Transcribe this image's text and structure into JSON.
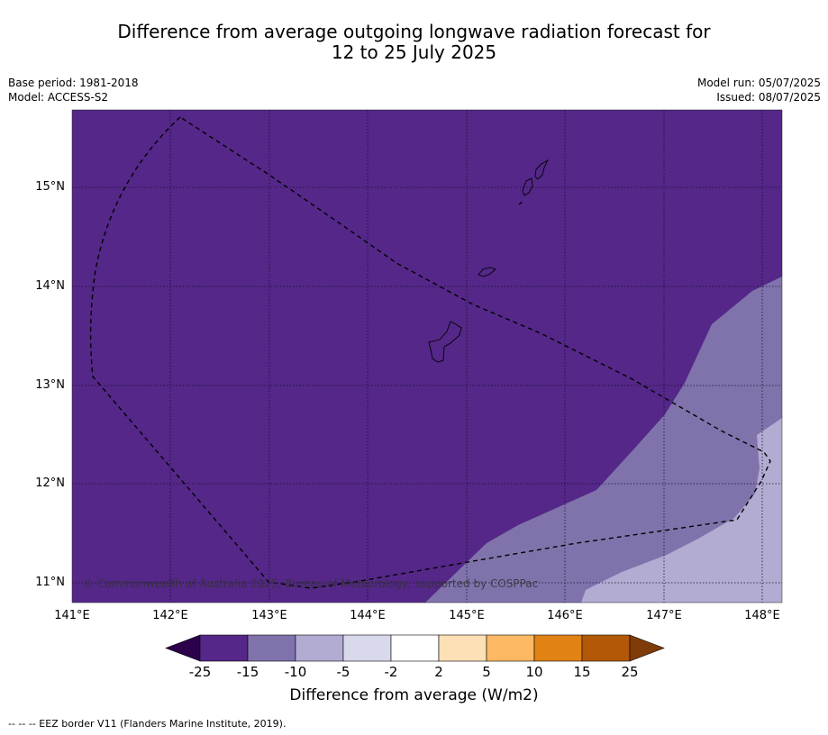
{
  "title_line1": "Difference from average outgoing longwave radiation forecast for",
  "title_line2": "12 to 25 July 2025",
  "meta": {
    "base_period": "Base period: 1981-2018",
    "model": "Model: ACCESS-S2",
    "model_run": "Model run: 05/07/2025",
    "issued": "Issued: 08/07/2025"
  },
  "lat_labels": [
    "15°N",
    "14°N",
    "13°N",
    "12°N",
    "11°N"
  ],
  "lon_labels": [
    "141°E",
    "142°E",
    "143°E",
    "144°E",
    "145°E",
    "146°E",
    "147°E",
    "148°E"
  ],
  "copyright": "© Commonwealth of Australia 2025, Bureau of Meteorology, supported by COSPPac",
  "colorbar": {
    "ticks": [
      "-25",
      "-15",
      "-10",
      "-5",
      "-2",
      "2",
      "5",
      "10",
      "15",
      "25"
    ],
    "colors": [
      "#2d004b",
      "#542788",
      "#8073ac",
      "#b2abd2",
      "#d8daeb",
      "#ffffff",
      "#fee0b6",
      "#fdb863",
      "#e08214",
      "#b35806",
      "#7f3b08"
    ],
    "title": "Difference from average (W/m2)"
  },
  "footer": "--  --  -- EEZ border V11 (Flanders Marine Institute, 2019)."
}
